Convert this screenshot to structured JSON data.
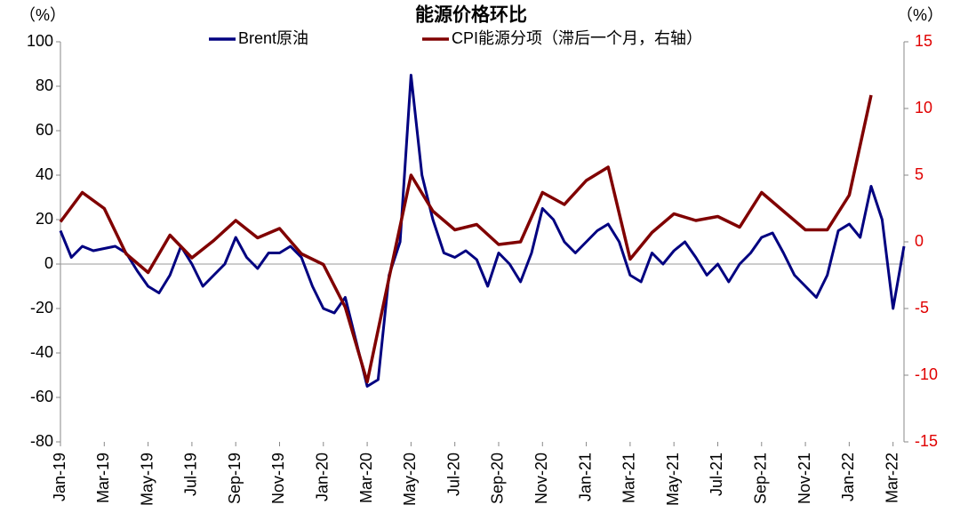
{
  "chart_data": {
    "type": "line",
    "title": "能源价格环比",
    "y_label": "（%）",
    "y2_label": "（%）",
    "xlim": [
      0,
      38.5
    ],
    "xticks": [
      {
        "value": 0,
        "label": "Jan-19"
      },
      {
        "value": 2,
        "label": "Mar-19"
      },
      {
        "value": 4,
        "label": "May-19"
      },
      {
        "value": 6,
        "label": "Jul-19"
      },
      {
        "value": 8,
        "label": "Sep-19"
      },
      {
        "value": 10,
        "label": "Nov-19"
      },
      {
        "value": 12,
        "label": "Jan-20"
      },
      {
        "value": 14,
        "label": "Mar-20"
      },
      {
        "value": 16,
        "label": "May-20"
      },
      {
        "value": 18,
        "label": "Jul-20"
      },
      {
        "value": 20,
        "label": "Sep-20"
      },
      {
        "value": 22,
        "label": "Nov-20"
      },
      {
        "value": 24,
        "label": "Jan-21"
      },
      {
        "value": 26,
        "label": "Mar-21"
      },
      {
        "value": 28,
        "label": "May-21"
      },
      {
        "value": 30,
        "label": "Jul-21"
      },
      {
        "value": 32,
        "label": "Sep-21"
      },
      {
        "value": 34,
        "label": "Nov-21"
      },
      {
        "value": 36,
        "label": "Jan-22"
      },
      {
        "value": 38,
        "label": "Mar-22"
      }
    ],
    "ylim": [
      -80,
      100
    ],
    "yticks": [
      -80,
      -60,
      -40,
      -20,
      0,
      20,
      40,
      60,
      80,
      100
    ],
    "y2lim": [
      -15,
      15
    ],
    "y2ticks": [
      -15,
      -10,
      -5,
      0,
      5,
      10,
      15
    ],
    "series": [
      {
        "name": "Brent原油",
        "color": "#000080",
        "x": [
          0,
          0.5,
          1,
          1.5,
          2,
          2.5,
          3,
          3.5,
          4,
          4.5,
          5,
          5.5,
          6,
          6.5,
          7,
          7.5,
          8,
          8.5,
          9,
          9.5,
          10,
          10.5,
          11,
          11.5,
          12,
          12.5,
          13,
          13.5,
          14,
          14.5,
          15,
          15.5,
          16,
          16.5,
          17,
          17.5,
          18,
          18.5,
          19,
          19.5,
          20,
          20.5,
          21,
          21.5,
          22,
          22.5,
          23,
          23.5,
          24,
          24.5,
          25,
          25.5,
          26,
          26.5,
          27,
          27.5,
          28,
          28.5,
          29,
          29.5,
          30,
          30.5,
          31,
          31.5,
          32,
          32.5,
          33,
          33.5,
          34,
          34.5,
          35,
          35.5,
          36,
          36.5,
          37,
          37.5,
          38,
          38.5
        ],
        "values": [
          15,
          3,
          8,
          6,
          7,
          8,
          5,
          -3,
          -10,
          -13,
          -5,
          8,
          0,
          -10,
          -5,
          0,
          12,
          3,
          -2,
          5,
          5,
          8,
          3,
          -10,
          -20,
          -22,
          -15,
          -35,
          -55,
          -52,
          -5,
          10,
          85,
          40,
          20,
          5,
          3,
          6,
          2,
          -10,
          5,
          0,
          -8,
          5,
          25,
          20,
          10,
          5,
          10,
          15,
          18,
          10,
          -5,
          -8,
          5,
          0,
          6,
          10,
          3,
          -5,
          0,
          -8,
          0,
          5,
          12,
          14,
          5,
          -5,
          -10,
          -15,
          -5,
          15,
          18,
          12,
          35,
          20,
          -20,
          8
        ]
      },
      {
        "name": "CPI能源分项（滞后一个月，右轴）",
        "color": "#800000",
        "axis": "y2",
        "x": [
          0,
          1,
          2,
          3,
          4,
          5,
          6,
          7,
          8,
          9,
          10,
          11,
          12,
          13,
          14,
          15,
          16,
          17,
          18,
          19,
          20,
          21,
          22,
          23,
          24,
          25,
          26,
          27,
          28,
          29,
          30,
          31,
          32,
          33,
          34,
          35,
          36,
          37
        ],
        "values": [
          1.5,
          3.7,
          2.5,
          -0.9,
          -2.3,
          0.5,
          -1.2,
          0.1,
          1.6,
          0.3,
          1.0,
          -0.9,
          -1.7,
          -4.9,
          -10.5,
          -2.7,
          5.0,
          2.3,
          0.9,
          1.3,
          -0.2,
          0.0,
          3.7,
          2.8,
          4.6,
          5.6,
          -1.3,
          0.7,
          2.1,
          1.6,
          1.9,
          1.1,
          3.7,
          2.3,
          0.9,
          0.9,
          3.5,
          11.0
        ]
      }
    ]
  }
}
